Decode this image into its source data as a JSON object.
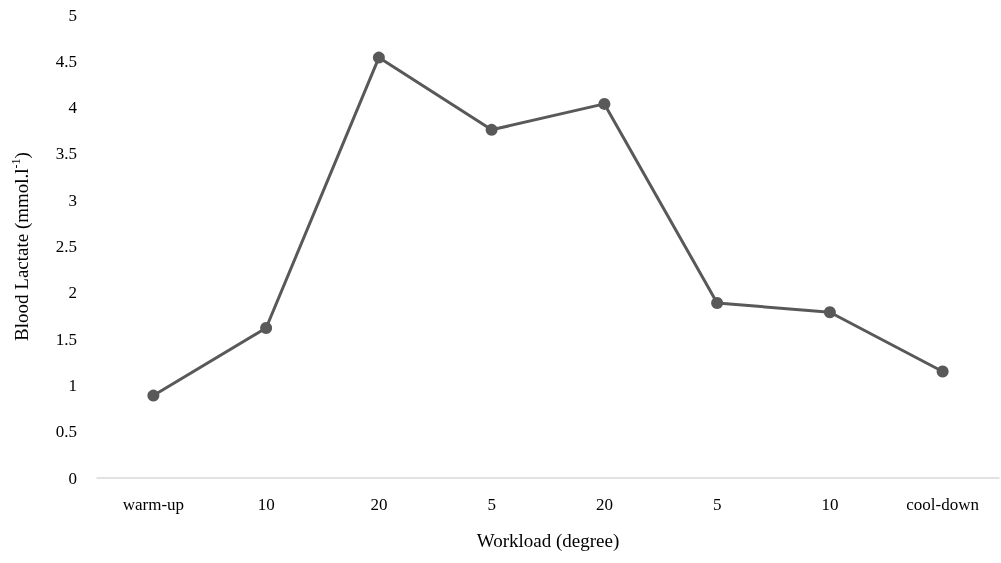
{
  "chart_data": {
    "type": "line",
    "xlabel": "Workload (degree)",
    "ylabel": "Blood Lactate (mmol.l$^{-1}$)",
    "categories": [
      "warm-up",
      "10",
      "20",
      "5",
      "20",
      "5",
      "10",
      "cool-down"
    ],
    "series": [
      {
        "color": "#595959",
        "values": [
          0.89,
          1.62,
          4.54,
          3.76,
          4.04,
          1.89,
          1.79,
          1.15
        ]
      }
    ],
    "ylim": [
      0,
      5
    ],
    "yticks": [
      0,
      0.5,
      1,
      1.5,
      2,
      2.5,
      3,
      3.5,
      4,
      4.5,
      5
    ],
    "grid": false,
    "marker": "circle",
    "line_style": "solid"
  }
}
